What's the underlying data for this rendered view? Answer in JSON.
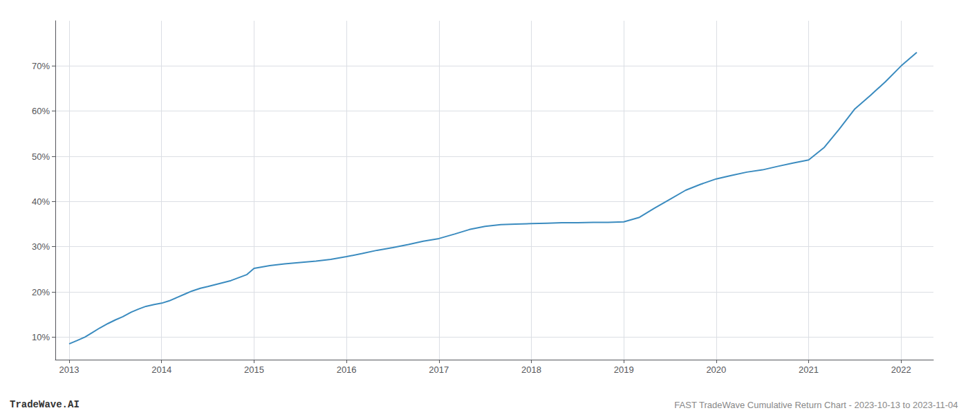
{
  "chart_data": {
    "type": "line",
    "annotations": [
      "TradeWave.AI",
      "FAST TradeWave Cumulative Return Chart - 2023-10-13 to 2023-11-04"
    ],
    "color": "#3a8bbf",
    "x": [
      2013.0,
      2013.08,
      2013.17,
      2013.25,
      2013.33,
      2013.42,
      2013.5,
      2013.58,
      2013.67,
      2013.75,
      2013.83,
      2013.92,
      2014.0,
      2014.08,
      2014.17,
      2014.25,
      2014.33,
      2014.42,
      2014.5,
      2014.75,
      2014.92,
      2015.0,
      2015.17,
      2015.33,
      2015.5,
      2015.67,
      2015.83,
      2016.0,
      2016.17,
      2016.33,
      2016.5,
      2016.67,
      2016.83,
      2017.0,
      2017.17,
      2017.33,
      2017.5,
      2017.67,
      2017.83,
      2018.0,
      2018.17,
      2018.33,
      2018.5,
      2018.67,
      2018.83,
      2019.0,
      2019.17,
      2019.33,
      2019.5,
      2019.67,
      2019.83,
      2020.0,
      2020.17,
      2020.33,
      2020.5,
      2020.67,
      2020.83,
      2021.0,
      2021.17,
      2021.33,
      2021.5,
      2021.67,
      2021.83,
      2022.0,
      2022.17
    ],
    "values": [
      8.5,
      9.2,
      10.0,
      11.0,
      12.0,
      13.0,
      13.8,
      14.5,
      15.5,
      16.2,
      16.8,
      17.2,
      17.5,
      18.0,
      18.8,
      19.5,
      20.2,
      20.8,
      21.2,
      22.5,
      23.8,
      25.2,
      25.8,
      26.2,
      26.5,
      26.8,
      27.2,
      27.8,
      28.5,
      29.2,
      29.8,
      30.5,
      31.2,
      31.8,
      32.8,
      33.8,
      34.5,
      34.9,
      35.0,
      35.1,
      35.2,
      35.3,
      35.3,
      35.4,
      35.4,
      35.5,
      36.5,
      38.5,
      40.5,
      42.5,
      43.8,
      45.0,
      45.8,
      46.5,
      47.0,
      47.8,
      48.5,
      49.2,
      52.0,
      56.0,
      60.5,
      63.5,
      66.5,
      70.0,
      73.0
    ],
    "xlim": [
      2012.85,
      2022.35
    ],
    "ylim": [
      5,
      80
    ],
    "xticks": [
      2013,
      2014,
      2015,
      2016,
      2017,
      2018,
      2019,
      2020,
      2021,
      2022
    ],
    "yticks": [
      {
        "value": 10,
        "label": "10%"
      },
      {
        "value": 20,
        "label": "20%"
      },
      {
        "value": 30,
        "label": "30%"
      },
      {
        "value": 40,
        "label": "40%"
      },
      {
        "value": 50,
        "label": "50%"
      },
      {
        "value": 60,
        "label": "60%"
      },
      {
        "value": 70,
        "label": "70%"
      }
    ],
    "grid": true
  }
}
